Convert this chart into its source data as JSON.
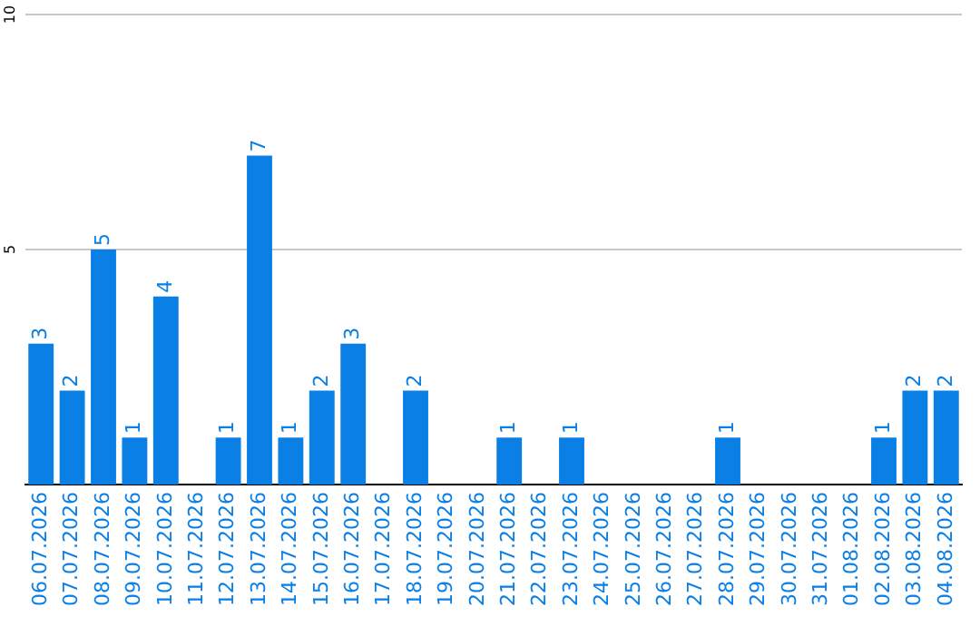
{
  "chart_data": {
    "type": "bar",
    "categories": [
      "06.07.2026",
      "07.07.2026",
      "08.07.2026",
      "09.07.2026",
      "10.07.2026",
      "11.07.2026",
      "12.07.2026",
      "13.07.2026",
      "14.07.2026",
      "15.07.2026",
      "16.07.2026",
      "17.07.2026",
      "18.07.2026",
      "19.07.2026",
      "20.07.2026",
      "21.07.2026",
      "22.07.2026",
      "23.07.2026",
      "24.07.2026",
      "25.07.2026",
      "26.07.2026",
      "27.07.2026",
      "28.07.2026",
      "29.07.2026",
      "30.07.2026",
      "31.07.2026",
      "01.08.2026",
      "02.08.2026",
      "03.08.2026",
      "04.08.2026"
    ],
    "values": [
      3,
      2,
      5,
      1,
      4,
      0,
      1,
      7,
      1,
      2,
      3,
      0,
      2,
      0,
      0,
      1,
      0,
      1,
      0,
      0,
      0,
      0,
      1,
      0,
      0,
      0,
      0,
      1,
      2,
      2
    ],
    "value_labels": [
      "3",
      "2",
      "5",
      "1",
      "4",
      null,
      "1",
      "7",
      "1",
      "2",
      "3",
      null,
      "2",
      null,
      null,
      "1",
      null,
      "1",
      null,
      null,
      null,
      null,
      "1",
      null,
      null,
      null,
      null,
      "1",
      "2",
      "2"
    ],
    "color": "#0a7fe6",
    "ylim": [
      0,
      10
    ],
    "yticks": [
      5,
      10
    ],
    "grid": "y",
    "legend": false
  }
}
